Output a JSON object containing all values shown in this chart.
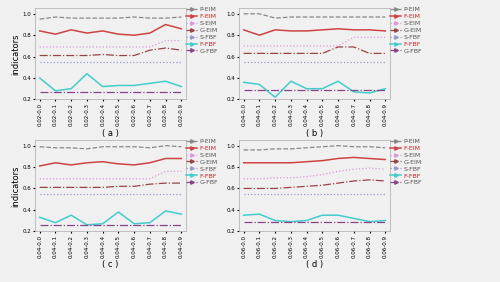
{
  "subplots": [
    {
      "label": "( a )",
      "x_prefix": "0.02-",
      "x_ticks": [
        "0.0",
        "0.1",
        "0.2",
        "0.3",
        "0.4",
        "0.5",
        "0.6",
        "0.7",
        "0.8",
        "0.9"
      ],
      "series": {
        "P-EIM": [
          0.95,
          0.97,
          0.96,
          0.96,
          0.96,
          0.96,
          0.97,
          0.96,
          0.96,
          0.97
        ],
        "F-EIM": [
          0.84,
          0.81,
          0.85,
          0.82,
          0.84,
          0.81,
          0.8,
          0.82,
          0.9,
          0.86
        ],
        "S-EIM": [
          0.69,
          0.69,
          0.69,
          0.69,
          0.69,
          0.69,
          0.69,
          0.69,
          0.75,
          0.75
        ],
        "G-EIM": [
          0.61,
          0.61,
          0.61,
          0.61,
          0.62,
          0.61,
          0.61,
          0.66,
          0.68,
          0.66
        ],
        "S-FBF": [
          0.55,
          0.55,
          0.55,
          0.55,
          0.55,
          0.55,
          0.55,
          0.55,
          0.55,
          0.55
        ],
        "F-FBF": [
          0.4,
          0.28,
          0.3,
          0.44,
          0.32,
          0.33,
          0.33,
          0.35,
          0.37,
          0.32
        ],
        "G-FBF": [
          0.27,
          0.27,
          0.27,
          0.27,
          0.27,
          0.27,
          0.27,
          0.27,
          0.27,
          0.27
        ]
      },
      "ylim": [
        0.2,
        1.05
      ]
    },
    {
      "label": "( b )",
      "x_prefix": "0.04-",
      "x_ticks": [
        "0.0",
        "0.1",
        "0.2",
        "0.3",
        "0.4",
        "0.5",
        "0.6",
        "0.7",
        "0.8",
        "0.9"
      ],
      "series": {
        "P-EIM": [
          1.0,
          1.0,
          0.96,
          0.97,
          0.97,
          0.97,
          0.97,
          0.97,
          0.97,
          0.97
        ],
        "F-EIM": [
          0.85,
          0.8,
          0.85,
          0.84,
          0.84,
          0.85,
          0.86,
          0.85,
          0.85,
          0.84
        ],
        "S-EIM": [
          0.7,
          0.7,
          0.7,
          0.7,
          0.7,
          0.7,
          0.7,
          0.78,
          0.78,
          0.78
        ],
        "G-EIM": [
          0.63,
          0.63,
          0.63,
          0.63,
          0.63,
          0.63,
          0.69,
          0.69,
          0.63,
          0.63
        ],
        "S-FBF": [
          0.55,
          0.55,
          0.55,
          0.55,
          0.55,
          0.55,
          0.55,
          0.55,
          0.55,
          0.55
        ],
        "F-FBF": [
          0.36,
          0.34,
          0.22,
          0.37,
          0.3,
          0.3,
          0.37,
          0.27,
          0.26,
          0.3
        ],
        "G-FBF": [
          0.29,
          0.29,
          0.29,
          0.29,
          0.29,
          0.29,
          0.29,
          0.29,
          0.29,
          0.29
        ]
      },
      "ylim": [
        0.2,
        1.05
      ]
    },
    {
      "label": "( c )",
      "x_prefix": "0.04-",
      "x_ticks": [
        "0.0",
        "0.1",
        "0.2",
        "0.3",
        "0.4",
        "0.5",
        "0.6",
        "0.7",
        "0.8",
        "0.9"
      ],
      "series": {
        "P-EIM": [
          0.99,
          0.98,
          0.98,
          0.97,
          0.99,
          0.99,
          0.99,
          0.98,
          1.0,
          0.99
        ],
        "F-EIM": [
          0.81,
          0.84,
          0.82,
          0.84,
          0.85,
          0.83,
          0.82,
          0.84,
          0.88,
          0.88
        ],
        "S-EIM": [
          0.69,
          0.69,
          0.69,
          0.69,
          0.69,
          0.69,
          0.69,
          0.69,
          0.76,
          0.76
        ],
        "G-EIM": [
          0.61,
          0.61,
          0.61,
          0.61,
          0.61,
          0.62,
          0.62,
          0.64,
          0.65,
          0.65
        ],
        "S-FBF": [
          0.55,
          0.55,
          0.55,
          0.55,
          0.55,
          0.55,
          0.55,
          0.55,
          0.55,
          0.55
        ],
        "F-FBF": [
          0.33,
          0.28,
          0.35,
          0.26,
          0.27,
          0.38,
          0.27,
          0.28,
          0.39,
          0.36
        ],
        "G-FBF": [
          0.26,
          0.26,
          0.26,
          0.26,
          0.26,
          0.26,
          0.26,
          0.26,
          0.26,
          0.26
        ]
      },
      "ylim": [
        0.2,
        1.05
      ]
    },
    {
      "label": "( d )",
      "x_prefix": "0.06-",
      "x_ticks": [
        "0.0",
        "0.1",
        "0.2",
        "0.3",
        "0.4",
        "0.5",
        "0.6",
        "0.7",
        "0.8",
        "0.9"
      ],
      "series": {
        "P-EIM": [
          0.96,
          0.96,
          0.97,
          0.97,
          0.98,
          0.99,
          1.0,
          0.99,
          0.99,
          0.98
        ],
        "F-EIM": [
          0.84,
          0.84,
          0.84,
          0.84,
          0.85,
          0.86,
          0.88,
          0.89,
          0.88,
          0.87
        ],
        "S-EIM": [
          0.69,
          0.69,
          0.7,
          0.7,
          0.71,
          0.73,
          0.76,
          0.78,
          0.79,
          0.78
        ],
        "G-EIM": [
          0.6,
          0.6,
          0.6,
          0.61,
          0.62,
          0.63,
          0.65,
          0.67,
          0.68,
          0.67
        ],
        "S-FBF": [
          0.55,
          0.55,
          0.55,
          0.55,
          0.55,
          0.55,
          0.55,
          0.55,
          0.55,
          0.55
        ],
        "F-FBF": [
          0.35,
          0.36,
          0.3,
          0.29,
          0.3,
          0.35,
          0.35,
          0.32,
          0.29,
          0.3
        ],
        "G-FBF": [
          0.29,
          0.29,
          0.29,
          0.29,
          0.29,
          0.29,
          0.29,
          0.29,
          0.29,
          0.29
        ]
      },
      "ylim": [
        0.2,
        1.05
      ]
    }
  ],
  "series_styles": {
    "P-EIM": {
      "color": "#888888",
      "linestyle": "--",
      "marker": null,
      "linewidth": 0.9
    },
    "F-EIM": {
      "color": "#cc4444",
      "linestyle": "-",
      "marker": null,
      "linewidth": 1.1
    },
    "S-EIM": {
      "color": "#dd99dd",
      "linestyle": ":",
      "marker": null,
      "linewidth": 0.9
    },
    "G-EIM": {
      "color": "#994444",
      "linestyle": "-.",
      "marker": null,
      "linewidth": 0.9
    },
    "S-FBF": {
      "color": "#9999cc",
      "linestyle": ":",
      "marker": null,
      "linewidth": 0.9
    },
    "F-FBF": {
      "color": "#44cccc",
      "linestyle": "-",
      "marker": null,
      "linewidth": 1.1
    },
    "G-FBF": {
      "color": "#884488",
      "linestyle": "-.",
      "marker": null,
      "linewidth": 0.9
    }
  },
  "legend_text_colors": {
    "P-EIM": "#555555",
    "F-EIM": "#cc2222",
    "S-EIM": "#555555",
    "G-EIM": "#555555",
    "S-FBF": "#555555",
    "F-FBF": "#cc2222",
    "G-FBF": "#555555"
  },
  "ylabel": "indicators",
  "background_color": "#f0f0f0",
  "tick_fontsize": 4.0,
  "label_fontsize": 6.0,
  "legend_fontsize": 4.5
}
